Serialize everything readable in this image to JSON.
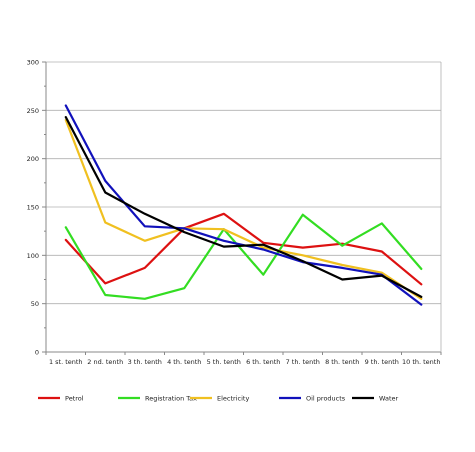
{
  "chart_data": {
    "type": "line",
    "categories": [
      "1 st. tenth",
      "2 nd. tenth",
      "3 th. tenth",
      "4 th. tenth",
      "5 th. tenth",
      "6 th. tenth",
      "7 th. tenth",
      "8 th. tenth",
      "9 th. tenth",
      "10 th. tenth"
    ],
    "ylim": [
      0,
      300
    ],
    "yticks": [
      0,
      50,
      100,
      150,
      200,
      250,
      300
    ],
    "ytick_labels": [
      "0",
      "50",
      "100",
      "150",
      "200",
      "250",
      "300"
    ],
    "grid": "horizontal",
    "legend_placement": "bottom",
    "series": [
      {
        "name": "Petrol",
        "color": "#dd1111",
        "values": [
          116,
          71,
          87,
          128,
          143,
          113,
          108,
          112,
          104,
          70
        ]
      },
      {
        "name": "Registration Tax",
        "color": "#33dd22",
        "values": [
          129,
          59,
          55,
          66,
          127,
          80,
          142,
          110,
          133,
          86
        ]
      },
      {
        "name": "Electricity",
        "color": "#f0c020",
        "values": [
          240,
          134,
          115,
          128,
          127,
          108,
          100,
          90,
          82,
          55
        ]
      },
      {
        "name": "Oil products",
        "color": "#1111bb",
        "values": [
          255,
          177,
          130,
          128,
          115,
          106,
          93,
          87,
          80,
          49
        ]
      },
      {
        "name": "Water",
        "color": "#000000",
        "values": [
          243,
          165,
          143,
          124,
          109,
          111,
          94,
          75,
          79,
          57
        ]
      }
    ]
  }
}
